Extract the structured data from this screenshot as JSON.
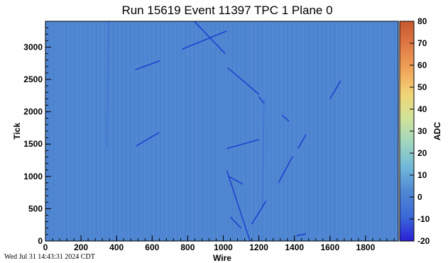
{
  "timestamp": "Wed Jul 31 14:43:31 2024 CDT",
  "chart_data": {
    "type": "heatmap",
    "title": "Run 15619 Event 11397 TPC 1 Plane 0",
    "xlabel": "Wire",
    "ylabel": "Tick",
    "zlabel": "ADC",
    "xlim": [
      0,
      1984
    ],
    "ylim": [
      0,
      3400
    ],
    "zlim": [
      -20,
      80
    ],
    "x_ticks": [
      0,
      200,
      400,
      600,
      800,
      1000,
      1200,
      1400,
      1600,
      1800
    ],
    "x_tick_labels": [
      "0",
      "200",
      "400",
      "600",
      "800",
      "1000",
      "1200",
      "1400",
      "1600",
      "1800"
    ],
    "y_ticks": [
      0,
      500,
      1000,
      1500,
      2000,
      2500,
      3000
    ],
    "y_tick_labels": [
      "0",
      "500",
      "1000",
      "1500",
      "2000",
      "2500",
      "3000"
    ],
    "z_ticks": [
      -20,
      -10,
      0,
      10,
      20,
      30,
      40,
      50,
      60,
      70,
      80
    ],
    "z_tick_labels": [
      "-20",
      "-10",
      "0",
      "10",
      "20",
      "30",
      "40",
      "50",
      "60",
      "70",
      "80"
    ],
    "background_color": "#4f86d2",
    "track_color": "#1d3fcf",
    "colorbar_stops": [
      "#2a1fd6",
      "#3a6ad8",
      "#4f86d2",
      "#6fb7d8",
      "#9ed6c0",
      "#cfe39a",
      "#f0d477",
      "#f0a55a",
      "#e07a46",
      "#c7582f"
    ],
    "tracks": [
      {
        "x1": 510,
        "y1": 1470,
        "x2": 640,
        "y2": 1680
      },
      {
        "x1": 505,
        "y1": 2650,
        "x2": 645,
        "y2": 2790
      },
      {
        "x1": 770,
        "y1": 2970,
        "x2": 1020,
        "y2": 3250
      },
      {
        "x1": 830,
        "y1": 3420,
        "x2": 1010,
        "y2": 2900
      },
      {
        "x1": 1025,
        "y1": 2680,
        "x2": 1200,
        "y2": 2270
      },
      {
        "x1": 1200,
        "y1": 2230,
        "x2": 1230,
        "y2": 2130
      },
      {
        "x1": 1020,
        "y1": 1430,
        "x2": 1200,
        "y2": 1570
      },
      {
        "x1": 1020,
        "y1": 1090,
        "x2": 1150,
        "y2": 0
      },
      {
        "x1": 1030,
        "y1": 1000,
        "x2": 1110,
        "y2": 880
      },
      {
        "x1": 1040,
        "y1": 370,
        "x2": 1100,
        "y2": 200
      },
      {
        "x1": 1160,
        "y1": 260,
        "x2": 1240,
        "y2": 620
      },
      {
        "x1": 1310,
        "y1": 900,
        "x2": 1390,
        "y2": 1310
      },
      {
        "x1": 1330,
        "y1": 1950,
        "x2": 1370,
        "y2": 1850
      },
      {
        "x1": 1420,
        "y1": 1430,
        "x2": 1465,
        "y2": 1650
      },
      {
        "x1": 1600,
        "y1": 2200,
        "x2": 1660,
        "y2": 2480
      },
      {
        "x1": 1410,
        "y1": 80,
        "x2": 1465,
        "y2": 110
      },
      {
        "x1": 345,
        "y1": 1430,
        "x2": 355,
        "y2": 3400
      },
      {
        "x1": 1220,
        "y1": 500,
        "x2": 1230,
        "y2": 2200
      }
    ]
  }
}
